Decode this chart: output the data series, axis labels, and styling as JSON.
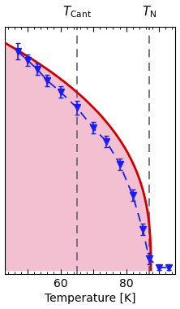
{
  "xlabel": "Temperature [K]",
  "T_Cant": 65,
  "T_N": 87,
  "xlim": [
    43,
    95
  ],
  "ylim": [
    -0.02,
    1.08
  ],
  "data_x": [
    47,
    50,
    53,
    56,
    60,
    65,
    70,
    74,
    78,
    82,
    85,
    87,
    90,
    93
  ],
  "data_y": [
    0.97,
    0.93,
    0.89,
    0.84,
    0.79,
    0.72,
    0.63,
    0.57,
    0.47,
    0.33,
    0.18,
    0.05,
    0.01,
    0.01
  ],
  "data_yerr": [
    0.035,
    0.025,
    0.025,
    0.025,
    0.025,
    0.03,
    0.025,
    0.025,
    0.025,
    0.025,
    0.025,
    0.025,
    0.01,
    0.01
  ],
  "fit_color": "#cc0000",
  "data_color": "#1a1aff",
  "fill_color": "#f2c0d0",
  "dashed_line_color": "#606070",
  "background_color": "#ffffff",
  "T_N_fit": 87.5,
  "beta": 0.36,
  "fit_T0": 44
}
